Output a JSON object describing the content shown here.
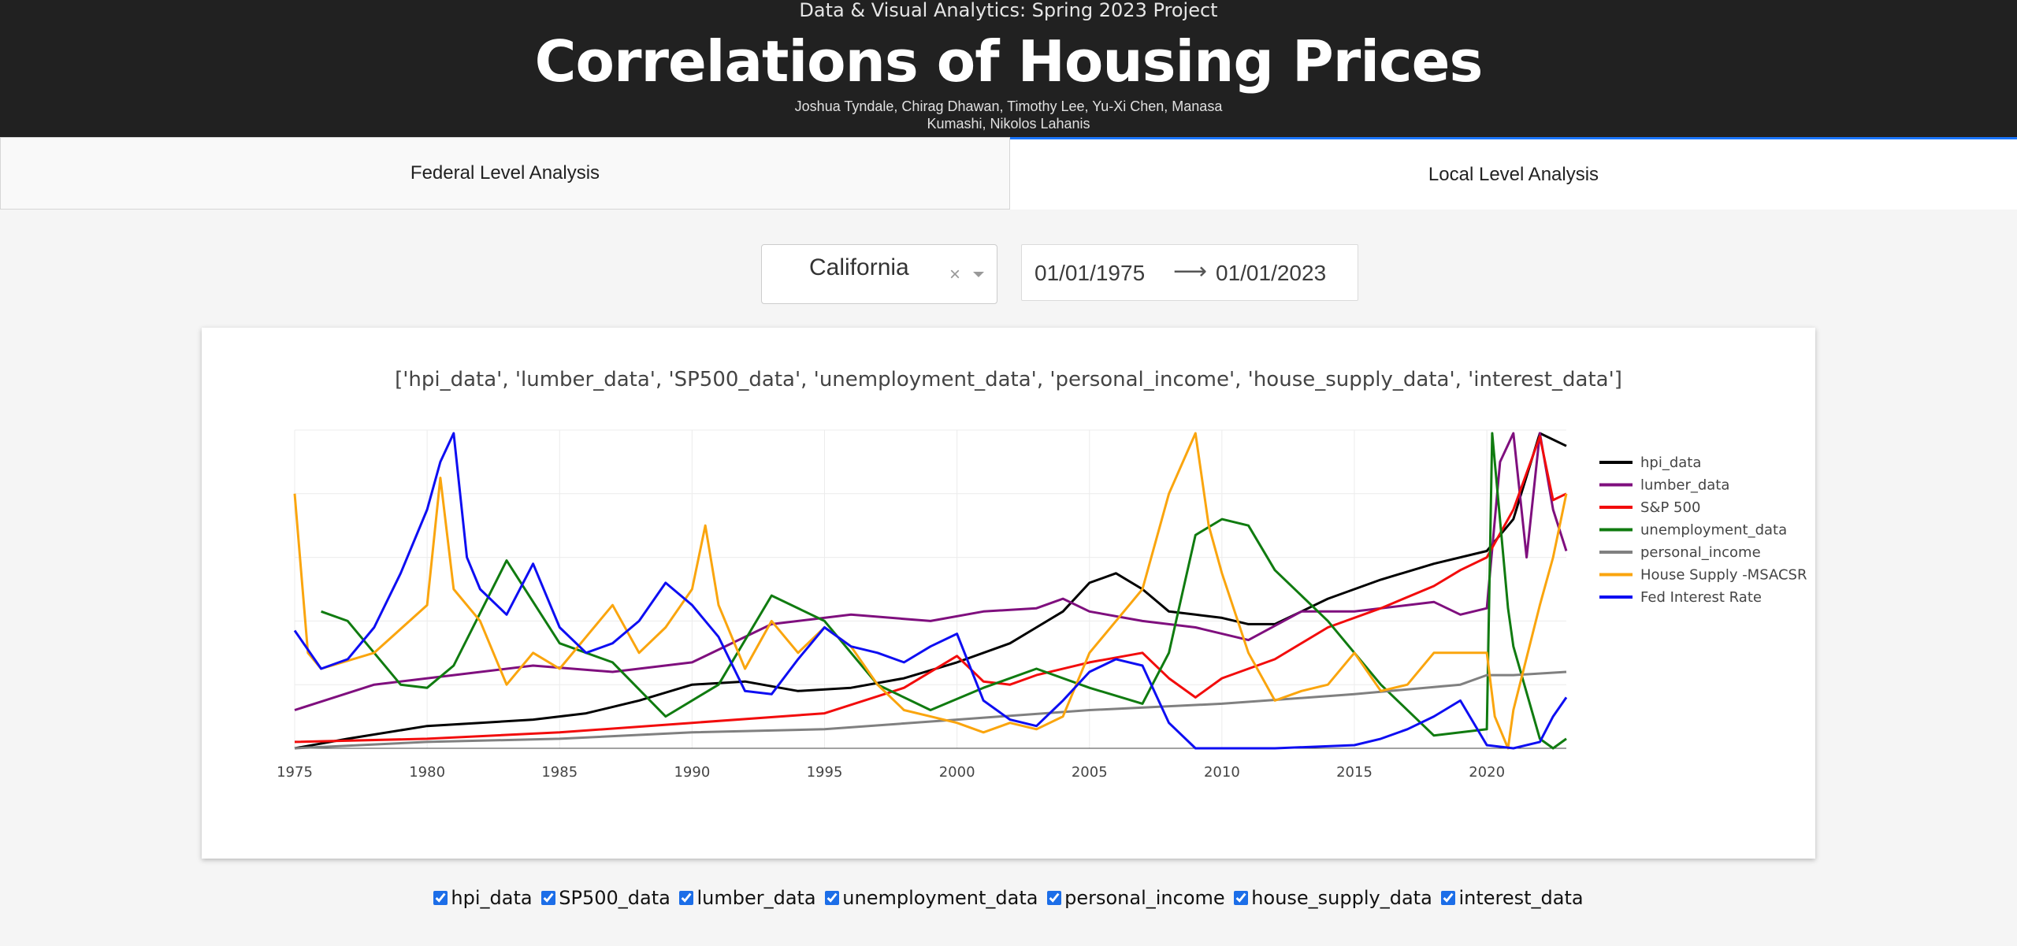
{
  "header": {
    "subtitle": "Data & Visual Analytics: Spring 2023 Project",
    "title": "Correlations of Housing Prices",
    "authors": "Joshua Tyndale, Chirag Dhawan, Timothy Lee, Yu-Xi Chen, Manasa Kumashi, Nikolos Lahanis"
  },
  "tabs": [
    {
      "label": "Federal Level Analysis",
      "selected": false
    },
    {
      "label": "Local Level Analysis",
      "selected": true
    }
  ],
  "controls": {
    "state": "California",
    "clear_symbol": "×",
    "date_start": "01/01/1975",
    "date_arrow": "⟶",
    "date_end": "01/01/2023"
  },
  "chart_data": {
    "type": "line",
    "title": "['hpi_data', 'lumber_data', 'SP500_data', 'unemployment_data', 'personal_income', 'house_supply_data', 'interest_data']",
    "xlabel": "",
    "ylabel": "",
    "x_ticks": [
      "1975",
      "1980",
      "1985",
      "1990",
      "1995",
      "2000",
      "2005",
      "2010",
      "2015",
      "2020"
    ],
    "xlim": [
      1975,
      2023
    ],
    "ylim": [
      0,
      1
    ],
    "grid": true,
    "legend_position": "right",
    "series": [
      {
        "name": "hpi_data",
        "color": "#000000",
        "x": [
          1975,
          1977,
          1980,
          1982,
          1984,
          1986,
          1988,
          1990,
          1992,
          1994,
          1996,
          1998,
          2000,
          2002,
          2003,
          2004,
          2005,
          2006,
          2007,
          2008,
          2009,
          2010,
          2011,
          2012,
          2013,
          2014,
          2016,
          2018,
          2020,
          2021,
          2022,
          2023
        ],
        "y": [
          0.0,
          0.03,
          0.07,
          0.08,
          0.09,
          0.11,
          0.15,
          0.2,
          0.21,
          0.18,
          0.19,
          0.22,
          0.27,
          0.33,
          0.38,
          0.43,
          0.52,
          0.55,
          0.5,
          0.43,
          0.42,
          0.41,
          0.39,
          0.39,
          0.43,
          0.47,
          0.53,
          0.58,
          0.62,
          0.72,
          0.99,
          0.95
        ]
      },
      {
        "name": "lumber_data",
        "color": "#7f0f7e",
        "x": [
          1975,
          1978,
          1981,
          1984,
          1987,
          1990,
          1993,
          1996,
          1999,
          2001,
          2003,
          2004,
          2005,
          2007,
          2009,
          2011,
          2013,
          2015,
          2018,
          2019,
          2020,
          2020.5,
          2021,
          2021.5,
          2022,
          2022.5,
          2023
        ],
        "y": [
          0.12,
          0.2,
          0.23,
          0.26,
          0.24,
          0.27,
          0.39,
          0.42,
          0.4,
          0.43,
          0.44,
          0.47,
          0.43,
          0.4,
          0.38,
          0.34,
          0.43,
          0.43,
          0.46,
          0.42,
          0.44,
          0.9,
          0.99,
          0.6,
          0.99,
          0.75,
          0.62
        ]
      },
      {
        "name": "S&P 500",
        "color": "#f20c0c",
        "x": [
          1975,
          1980,
          1985,
          1990,
          1995,
          1998,
          2000,
          2001,
          2002,
          2003,
          2005,
          2007,
          2008,
          2009,
          2010,
          2012,
          2014,
          2016,
          2018,
          2019,
          2020,
          2021,
          2022,
          2022.5,
          2023
        ],
        "y": [
          0.02,
          0.03,
          0.05,
          0.08,
          0.11,
          0.19,
          0.29,
          0.21,
          0.2,
          0.23,
          0.27,
          0.3,
          0.22,
          0.16,
          0.22,
          0.28,
          0.38,
          0.44,
          0.51,
          0.56,
          0.6,
          0.75,
          0.98,
          0.78,
          0.8
        ]
      },
      {
        "name": "unemployment_data",
        "color": "#107b10",
        "x": [
          1976,
          1977,
          1979,
          1980,
          1981,
          1983,
          1985,
          1987,
          1989,
          1991,
          1993,
          1995,
          1997,
          1999,
          2001,
          2003,
          2005,
          2007,
          2008,
          2009,
          2010,
          2011,
          2012,
          2014,
          2016,
          2018,
          2019,
          2020,
          2020.2,
          2020.8,
          2021,
          2022,
          2022.5,
          2023
        ],
        "y": [
          0.43,
          0.4,
          0.2,
          0.19,
          0.26,
          0.59,
          0.33,
          0.27,
          0.1,
          0.2,
          0.48,
          0.4,
          0.2,
          0.12,
          0.19,
          0.25,
          0.19,
          0.14,
          0.3,
          0.67,
          0.72,
          0.7,
          0.56,
          0.4,
          0.2,
          0.04,
          0.05,
          0.06,
          0.99,
          0.44,
          0.32,
          0.03,
          0.0,
          0.03
        ]
      },
      {
        "name": "personal_income",
        "color": "#808080",
        "x": [
          1975,
          1980,
          1985,
          1990,
          1995,
          2000,
          2005,
          2010,
          2015,
          2019,
          2020,
          2020.3,
          2021,
          2023
        ],
        "y": [
          0.0,
          0.02,
          0.03,
          0.05,
          0.06,
          0.09,
          0.12,
          0.14,
          0.17,
          0.2,
          0.23,
          0.23,
          0.23,
          0.24
        ]
      },
      {
        "name": "House Supply -MSACSR",
        "color": "#faa50e",
        "x": [
          1975,
          1975.5,
          1976,
          1978,
          1980,
          1980.5,
          1981,
          1982,
          1983,
          1984,
          1985,
          1986,
          1987,
          1988,
          1989,
          1990,
          1990.5,
          1991,
          1992,
          1993,
          1994,
          1995,
          1996,
          1997,
          1998,
          1999,
          2000,
          2001,
          2002,
          2003,
          2004,
          2005,
          2006,
          2007,
          2008,
          2009,
          2009.5,
          2010,
          2011,
          2012,
          2013,
          2014,
          2015,
          2016,
          2017,
          2018,
          2019,
          2020,
          2020.3,
          2020.8,
          2021,
          2022,
          2022.5,
          2023
        ],
        "y": [
          0.8,
          0.3,
          0.25,
          0.3,
          0.45,
          0.85,
          0.5,
          0.4,
          0.2,
          0.3,
          0.25,
          0.35,
          0.45,
          0.3,
          0.38,
          0.5,
          0.7,
          0.45,
          0.25,
          0.4,
          0.3,
          0.38,
          0.32,
          0.2,
          0.12,
          0.1,
          0.08,
          0.05,
          0.08,
          0.06,
          0.1,
          0.3,
          0.4,
          0.5,
          0.8,
          0.99,
          0.7,
          0.55,
          0.3,
          0.15,
          0.18,
          0.2,
          0.3,
          0.18,
          0.2,
          0.3,
          0.3,
          0.3,
          0.1,
          0.0,
          0.12,
          0.45,
          0.6,
          0.8
        ]
      },
      {
        "name": "Fed Interest Rate",
        "color": "#0e0ef2",
        "x": [
          1975,
          1976,
          1977,
          1978,
          1979,
          1980,
          1980.5,
          1981,
          1981.5,
          1982,
          1983,
          1984,
          1985,
          1986,
          1987,
          1988,
          1989,
          1990,
          1991,
          1992,
          1993,
          1994,
          1995,
          1996,
          1997,
          1998,
          1999,
          2000,
          2001,
          2002,
          2003,
          2004,
          2005,
          2006,
          2007,
          2008,
          2009,
          2012,
          2015,
          2016,
          2017,
          2018,
          2019,
          2020,
          2021,
          2022,
          2022.5,
          2023
        ],
        "y": [
          0.37,
          0.25,
          0.28,
          0.38,
          0.55,
          0.75,
          0.9,
          0.99,
          0.6,
          0.5,
          0.42,
          0.58,
          0.38,
          0.3,
          0.33,
          0.4,
          0.52,
          0.45,
          0.35,
          0.18,
          0.17,
          0.28,
          0.38,
          0.32,
          0.3,
          0.27,
          0.32,
          0.36,
          0.15,
          0.09,
          0.07,
          0.15,
          0.24,
          0.28,
          0.26,
          0.08,
          0.0,
          0.0,
          0.01,
          0.03,
          0.06,
          0.1,
          0.15,
          0.01,
          0.0,
          0.02,
          0.1,
          0.16
        ]
      }
    ]
  },
  "checklist": [
    {
      "label": "hpi_data",
      "checked": true
    },
    {
      "label": "SP500_data",
      "checked": true
    },
    {
      "label": "lumber_data",
      "checked": true
    },
    {
      "label": "unemployment_data",
      "checked": true
    },
    {
      "label": "personal_income",
      "checked": true
    },
    {
      "label": "house_supply_data",
      "checked": true
    },
    {
      "label": "interest_data",
      "checked": true
    }
  ]
}
